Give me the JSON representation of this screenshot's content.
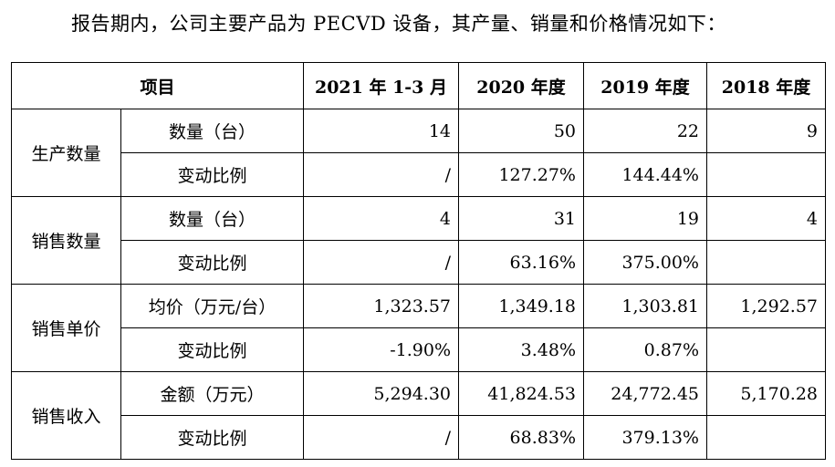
{
  "intro_text": "报告期内，公司主要产品为 PECVD 设备，其产量、销量和价格情况如下：",
  "table": {
    "headers": [
      "项目",
      "2021 年 1-3 月",
      "2020 年度",
      "2019 年度",
      "2018 年度"
    ],
    "groups": [
      {
        "category": "生产数量",
        "rows": [
          {
            "label": "数量（台）",
            "values": [
              "14",
              "50",
              "22",
              "9"
            ]
          },
          {
            "label": "变动比例",
            "values": [
              "/",
              "127.27%",
              "144.44%",
              ""
            ]
          }
        ]
      },
      {
        "category": "销售数量",
        "rows": [
          {
            "label": "数量（台）",
            "values": [
              "4",
              "31",
              "19",
              "4"
            ]
          },
          {
            "label": "变动比例",
            "values": [
              "/",
              "63.16%",
              "375.00%",
              ""
            ]
          }
        ]
      },
      {
        "category": "销售单价",
        "rows": [
          {
            "label": "均价（万元/台）",
            "values": [
              "1,323.57",
              "1,349.18",
              "1,303.81",
              "1,292.57"
            ]
          },
          {
            "label": "变动比例",
            "values": [
              "-1.90%",
              "3.48%",
              "0.87%",
              ""
            ]
          }
        ]
      },
      {
        "category": "销售收入",
        "rows": [
          {
            "label": "金额（万元）",
            "values": [
              "5,294.30",
              "41,824.53",
              "24,772.45",
              "5,170.28"
            ]
          },
          {
            "label": "变动比例",
            "values": [
              "/",
              "68.83%",
              "379.13%",
              ""
            ]
          }
        ]
      }
    ]
  }
}
